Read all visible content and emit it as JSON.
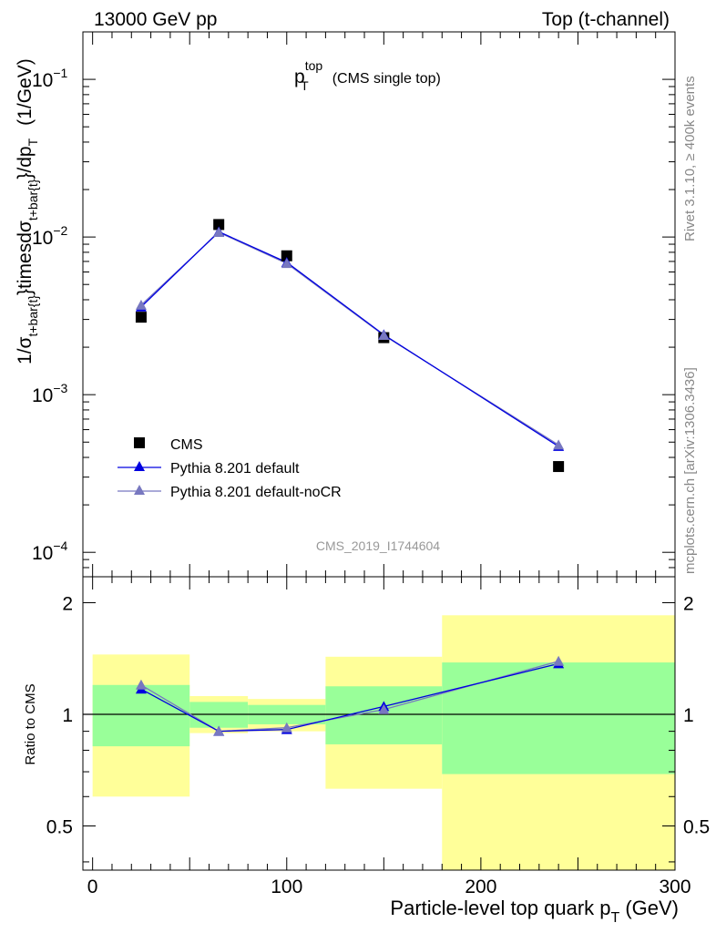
{
  "header": {
    "left": "13000 GeV pp",
    "right": "Top (t-channel)"
  },
  "side_labels": {
    "upper": "Rivet 3.1.10, ≥ 400k events",
    "lower": "mcplots.cern.ch [arXiv:1306.3436]"
  },
  "chart_data": [
    {
      "type": "scatter",
      "panel": "main",
      "title": {
        "main": "p",
        "sup": "top",
        "sub": "T",
        "suffix": "(CMS single top)"
      },
      "watermark": "CMS_2019_I1744604",
      "ylabel": {
        "parts": [
          "1/σ",
          "t+bar{t}",
          "}timesdσ",
          "t+bar{t}",
          "}/dp",
          "T",
          "(1/GeV)"
        ]
      },
      "yscale": "log",
      "ylim": [
        7e-05,
        0.2
      ],
      "xlim": [
        -5,
        300
      ],
      "yticks": [
        {
          "value": 0.1,
          "base": "10",
          "exp": "−1"
        },
        {
          "value": 0.01,
          "base": "10",
          "exp": "−2"
        },
        {
          "value": 0.001,
          "base": "10",
          "exp": "−3"
        },
        {
          "value": 0.0001,
          "base": "10",
          "exp": "−4"
        }
      ],
      "legend_position": "lower-left",
      "series": [
        {
          "name": "CMS",
          "marker": "square",
          "color": "#000000",
          "x": [
            25,
            65,
            100,
            150,
            240
          ],
          "y": [
            0.0031,
            0.012,
            0.0076,
            0.0023,
            0.00035
          ]
        },
        {
          "name": "Pythia 8.201 default",
          "marker": "triangle",
          "color": "#0000e0",
          "x": [
            25,
            65,
            100,
            150,
            240
          ],
          "y": [
            0.0036,
            0.0108,
            0.0069,
            0.0024,
            0.00047
          ]
        },
        {
          "name": "Pythia 8.201 default-noCR",
          "marker": "triangle",
          "color": "#7878c0",
          "x": [
            25,
            65,
            100,
            150,
            240
          ],
          "y": [
            0.0037,
            0.0107,
            0.0068,
            0.00238,
            0.00048
          ]
        }
      ]
    },
    {
      "type": "line",
      "panel": "ratio",
      "ylabel": "Ratio to CMS",
      "xlabel": {
        "main": "Particle-level top quark p",
        "sub": "T",
        "unit": "(GeV)"
      },
      "xlim": [
        -5,
        300
      ],
      "ylim": [
        0.38,
        2.35
      ],
      "xticks": [
        0,
        100,
        200,
        300
      ],
      "yticks": [
        0.5,
        1,
        2
      ],
      "reference_line": 1,
      "bands": [
        {
          "xmin": 0,
          "xmax": 50,
          "yellow": [
            0.6,
            1.45
          ],
          "green": [
            0.82,
            1.2
          ]
        },
        {
          "xmin": 50,
          "xmax": 80,
          "yellow": [
            0.89,
            1.12
          ],
          "green": [
            0.92,
            1.08
          ]
        },
        {
          "xmin": 80,
          "xmax": 120,
          "yellow": [
            0.9,
            1.1
          ],
          "green": [
            0.94,
            1.06
          ]
        },
        {
          "xmin": 120,
          "xmax": 180,
          "yellow": [
            0.63,
            1.43
          ],
          "green": [
            0.83,
            1.19
          ]
        },
        {
          "xmin": 180,
          "xmax": 300,
          "yellow": [
            0.38,
            1.85
          ],
          "green": [
            0.69,
            1.38
          ]
        }
      ],
      "band_colors": {
        "yellow": "#ffff99",
        "green": "#99ff99"
      },
      "series": [
        {
          "name": "Pythia 8.201 default",
          "color": "#0000e0",
          "x": [
            25,
            65,
            100,
            150,
            240
          ],
          "y": [
            1.17,
            0.9,
            0.91,
            1.05,
            1.37
          ]
        },
        {
          "name": "Pythia 8.201 default-noCR",
          "color": "#7878c0",
          "x": [
            25,
            65,
            100,
            150,
            240
          ],
          "y": [
            1.2,
            0.9,
            0.92,
            1.03,
            1.39
          ]
        }
      ]
    }
  ]
}
